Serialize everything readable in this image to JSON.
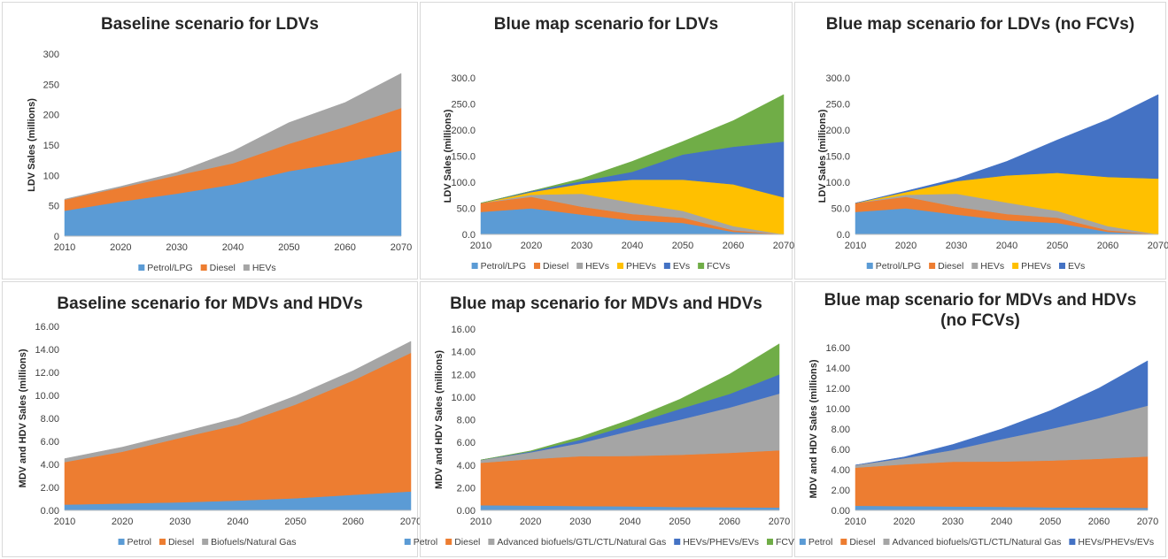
{
  "colors": {
    "blue": "#5b9bd5",
    "orange": "#ed7d31",
    "gray": "#a5a5a5",
    "yellow": "#ffc000",
    "darkblue": "#4472c4",
    "green": "#70ad47"
  },
  "chart_data": [
    {
      "type": "area",
      "stacked": true,
      "title": [
        "Baseline scenario for LDVs"
      ],
      "ylabel": "LDV Sales (millions)",
      "xlabel": "",
      "x": [
        "2010",
        "2020",
        "2030",
        "2040",
        "2050",
        "2060",
        "2070"
      ],
      "ylim": [
        0,
        300
      ],
      "yticks": [
        "0",
        "50",
        "100",
        "150",
        "200",
        "250",
        "300"
      ],
      "grid": false,
      "legend": "bottom",
      "series": [
        {
          "name": "Petrol/LPG",
          "color": "#5b9bd5",
          "values": [
            42,
            57,
            70,
            85,
            107,
            122,
            141
          ]
        },
        {
          "name": "Diesel",
          "color": "#ed7d31",
          "values": [
            18,
            23,
            30,
            35,
            45,
            58,
            70
          ]
        },
        {
          "name": "HEVs",
          "color": "#a5a5a5",
          "values": [
            1,
            2,
            5,
            20,
            35,
            40,
            57
          ]
        }
      ]
    },
    {
      "type": "area",
      "stacked": true,
      "title": [
        "Blue map scenario for LDVs"
      ],
      "ylabel": "LDV Sales (millions)",
      "xlabel": "",
      "x": [
        "2010",
        "2020",
        "2030",
        "2040",
        "2050",
        "2060",
        "2070"
      ],
      "ylim": [
        0,
        300
      ],
      "yticks": [
        "0.0",
        "50.0",
        "100.0",
        "150.0",
        "200.0",
        "250.0",
        "300.0"
      ],
      "grid": false,
      "legend": "bottom",
      "series": [
        {
          "name": "Petrol/LPG",
          "color": "#5b9bd5",
          "values": [
            43,
            50,
            38,
            27,
            22,
            5,
            0
          ]
        },
        {
          "name": "Diesel",
          "color": "#ed7d31",
          "values": [
            17,
            22,
            15,
            12,
            10,
            3,
            0
          ]
        },
        {
          "name": "HEVs",
          "color": "#a5a5a5",
          "values": [
            0,
            4,
            25,
            22,
            13,
            8,
            0
          ]
        },
        {
          "name": "PHEVs",
          "color": "#ffc000",
          "values": [
            0,
            5,
            19,
            44,
            60,
            80,
            71
          ]
        },
        {
          "name": "EVs",
          "color": "#4472c4",
          "values": [
            0,
            2,
            5,
            15,
            48,
            72,
            107
          ]
        },
        {
          "name": "FCVs",
          "color": "#70ad47",
          "values": [
            0,
            0,
            5,
            20,
            25,
            50,
            90
          ]
        }
      ]
    },
    {
      "type": "area",
      "stacked": true,
      "title": [
        "Blue map scenario for LDVs (no FCVs)"
      ],
      "ylabel": "LDV Sales (millions)",
      "xlabel": "",
      "x": [
        "2010",
        "2020",
        "2030",
        "2040",
        "2050",
        "2060",
        "2070"
      ],
      "ylim": [
        0,
        300
      ],
      "yticks": [
        "0.0",
        "50.0",
        "100.0",
        "150.0",
        "200.0",
        "250.0",
        "300.0"
      ],
      "grid": false,
      "legend": "bottom",
      "series": [
        {
          "name": "Petrol/LPG",
          "color": "#5b9bd5",
          "values": [
            43,
            50,
            38,
            27,
            22,
            5,
            0
          ]
        },
        {
          "name": "Diesel",
          "color": "#ed7d31",
          "values": [
            17,
            22,
            15,
            12,
            10,
            3,
            0
          ]
        },
        {
          "name": "HEVs",
          "color": "#a5a5a5",
          "values": [
            0,
            4,
            25,
            22,
            13,
            8,
            0
          ]
        },
        {
          "name": "PHEVs",
          "color": "#ffc000",
          "values": [
            0,
            5,
            24,
            52,
            73,
            94,
            107
          ]
        },
        {
          "name": "EVs",
          "color": "#4472c4",
          "values": [
            0,
            2,
            5,
            27,
            63,
            110,
            161
          ]
        }
      ]
    },
    {
      "type": "area",
      "stacked": true,
      "title": [
        "Baseline scenario for MDVs and HDVs"
      ],
      "ylabel": "MDV and HDV Sales (millions)",
      "xlabel": "",
      "x": [
        "2010",
        "2020",
        "2030",
        "2040",
        "2050",
        "2060",
        "2070"
      ],
      "ylim": [
        0,
        16
      ],
      "yticks": [
        "0.00",
        "2.00",
        "4.00",
        "6.00",
        "8.00",
        "10.00",
        "12.00",
        "14.00",
        "16.00"
      ],
      "grid": false,
      "legend": "bottom",
      "series": [
        {
          "name": "Petrol",
          "color": "#5b9bd5",
          "values": [
            0.5,
            0.6,
            0.7,
            0.85,
            1.05,
            1.35,
            1.65
          ]
        },
        {
          "name": "Diesel",
          "color": "#ed7d31",
          "values": [
            3.7,
            4.5,
            5.6,
            6.6,
            8.15,
            9.95,
            12.05
          ]
        },
        {
          "name": "Biofuels/Natural Gas",
          "color": "#a5a5a5",
          "values": [
            0.3,
            0.4,
            0.45,
            0.6,
            0.75,
            0.85,
            1.0
          ]
        }
      ]
    },
    {
      "type": "area",
      "stacked": true,
      "title": [
        "Blue map scenario for MDVs and HDVs"
      ],
      "ylabel": "MDV and HDV Sales (millions)",
      "xlabel": "",
      "x": [
        "2010",
        "2020",
        "2030",
        "2040",
        "2050",
        "2060",
        "2070"
      ],
      "ylim": [
        0,
        16
      ],
      "yticks": [
        "0.00",
        "2.00",
        "4.00",
        "6.00",
        "8.00",
        "10.00",
        "12.00",
        "14.00",
        "16.00"
      ],
      "grid": false,
      "legend": "bottom",
      "series": [
        {
          "name": "Petrol",
          "color": "#5b9bd5",
          "values": [
            0.45,
            0.42,
            0.38,
            0.35,
            0.3,
            0.27,
            0.25
          ]
        },
        {
          "name": "Diesel",
          "color": "#ed7d31",
          "values": [
            3.75,
            4.1,
            4.4,
            4.45,
            4.6,
            4.8,
            5.05
          ]
        },
        {
          "name": "Advanced biofuels/GTL/CTL/Natural Gas",
          "color": "#a5a5a5",
          "values": [
            0.25,
            0.6,
            1.15,
            2.2,
            3.1,
            4.0,
            5.0
          ]
        },
        {
          "name": "HEVs/PHEVs/EVs",
          "color": "#4472c4",
          "values": [
            0.0,
            0.08,
            0.3,
            0.55,
            0.95,
            1.2,
            1.7
          ]
        },
        {
          "name": "FCVs",
          "color": "#70ad47",
          "values": [
            0.0,
            0.05,
            0.25,
            0.45,
            0.85,
            1.75,
            2.7
          ]
        }
      ]
    },
    {
      "type": "area",
      "stacked": true,
      "title": [
        "Blue map scenario for MDVs and HDVs",
        "(no FCVs)"
      ],
      "ylabel": "MDV and HDV Sales (millions)",
      "xlabel": "",
      "x": [
        "2010",
        "2020",
        "2030",
        "2040",
        "2050",
        "2060",
        "2070"
      ],
      "ylim": [
        0,
        16
      ],
      "yticks": [
        "0.00",
        "2.00",
        "4.00",
        "6.00",
        "8.00",
        "10.00",
        "12.00",
        "14.00",
        "16.00"
      ],
      "grid": false,
      "legend": "bottom",
      "series": [
        {
          "name": "Petrol",
          "color": "#5b9bd5",
          "values": [
            0.45,
            0.42,
            0.38,
            0.35,
            0.3,
            0.27,
            0.25
          ]
        },
        {
          "name": "Diesel",
          "color": "#ed7d31",
          "values": [
            3.75,
            4.1,
            4.4,
            4.45,
            4.6,
            4.8,
            5.05
          ]
        },
        {
          "name": "Advanced biofuels/GTL/CTL/Natural Gas",
          "color": "#a5a5a5",
          "values": [
            0.25,
            0.6,
            1.15,
            2.2,
            3.1,
            4.0,
            5.0
          ]
        },
        {
          "name": "HEVs/PHEVs/EVs",
          "color": "#4472c4",
          "values": [
            0.0,
            0.13,
            0.55,
            1.0,
            1.8,
            2.95,
            4.4
          ]
        }
      ]
    }
  ]
}
